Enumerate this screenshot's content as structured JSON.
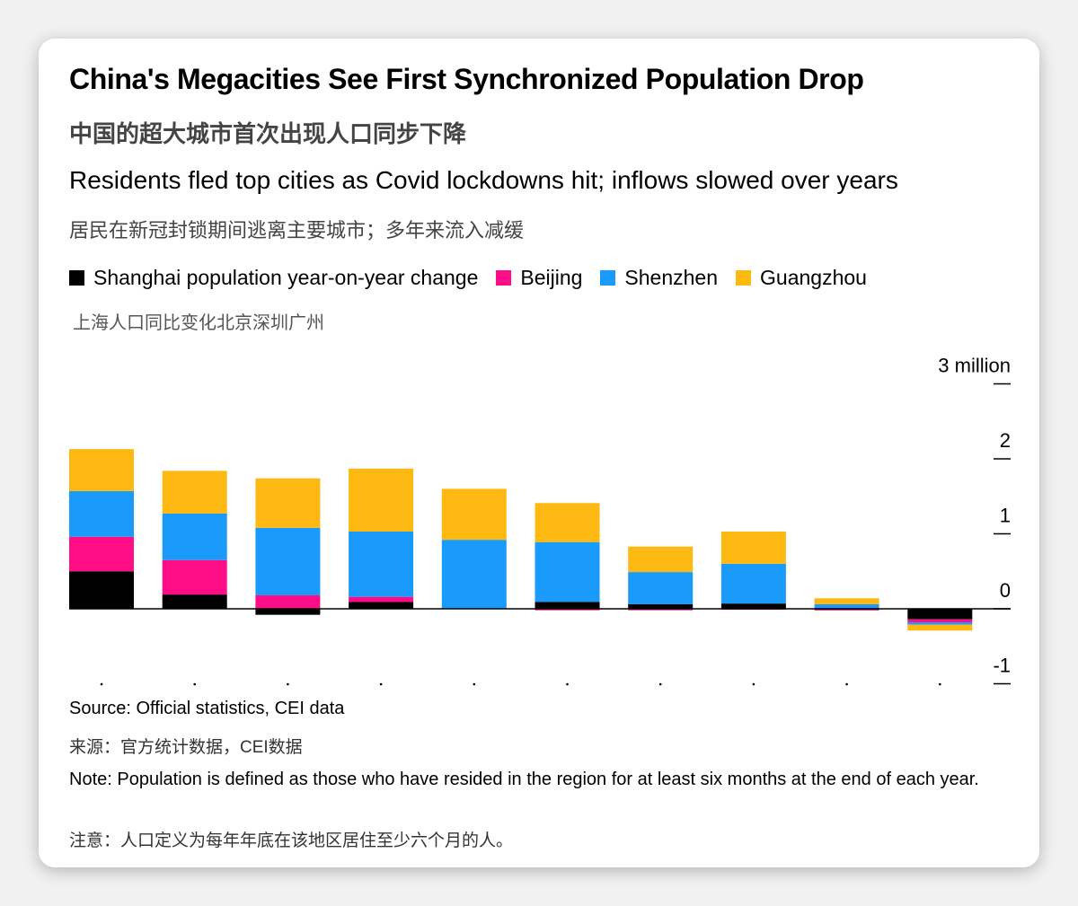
{
  "header": {
    "title": "China's Megacities See First Synchronized Population Drop",
    "title_zh": "中国的超大城市首次出现人口同步下降",
    "subtitle": "Residents fled top cities as Covid lockdowns hit; inflows slowed over years",
    "subtitle_zh": "居民在新冠封锁期间逃离主要城市；多年来流入减缓"
  },
  "legend": {
    "items": [
      {
        "label": "Shanghai population year-on-year change",
        "color": "#000000"
      },
      {
        "label": "Beijing",
        "color": "#ff0d87"
      },
      {
        "label": "Shenzhen",
        "color": "#1a9bfc"
      },
      {
        "label": "Guangzhou",
        "color": "#fdb912"
      }
    ],
    "label_zh": "上海人口同比变化北京深圳广州"
  },
  "chart_data": {
    "type": "bar",
    "stacked": true,
    "categories": [
      "",
      "",
      "",
      "",
      "",
      "",
      "",
      "",
      "",
      ""
    ],
    "series": [
      {
        "name": "Shanghai population year-on-year change",
        "color": "#000000",
        "values": [
          0.5,
          0.19,
          -0.08,
          0.09,
          0.0,
          0.09,
          0.06,
          0.07,
          -0.01,
          -0.14
        ]
      },
      {
        "name": "Beijing",
        "color": "#ff0d87",
        "values": [
          0.46,
          0.46,
          0.18,
          0.07,
          0.0,
          -0.02,
          -0.02,
          -0.01,
          -0.01,
          -0.04
        ]
      },
      {
        "name": "Shenzhen",
        "color": "#1a9bfc",
        "values": [
          0.61,
          0.62,
          0.9,
          0.87,
          0.92,
          0.8,
          0.43,
          0.53,
          0.06,
          -0.03
        ]
      },
      {
        "name": "Guangzhou",
        "color": "#fdb912",
        "values": [
          0.56,
          0.57,
          0.66,
          0.84,
          0.68,
          0.52,
          0.34,
          0.43,
          0.08,
          -0.08
        ]
      }
    ],
    "yaxis": {
      "unit_label": "3 million",
      "ticks": [
        3,
        2,
        1,
        0,
        -1
      ],
      "tick_labels": [
        "3 million",
        "2",
        "1",
        "0",
        "-1"
      ],
      "range": [
        -1,
        3
      ],
      "gridlines": false
    }
  },
  "footer": {
    "source": "Source: Official statistics, CEI data",
    "source_zh": "来源：官方统计数据，CEI数据",
    "note": "Note: Population is defined as those who have resided in the region for at least six months at the end of each year.",
    "note_zh": "注意：人口定义为每年年底在该地区居住至少六个月的人。"
  }
}
